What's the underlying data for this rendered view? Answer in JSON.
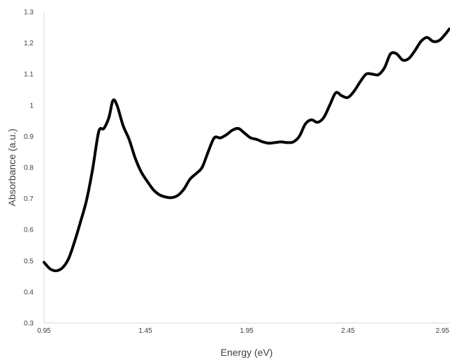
{
  "chart_data": {
    "type": "line",
    "title": "",
    "xlabel": "Energy (eV)",
    "ylabel": "Absorbance (a.u.)",
    "xlim": [
      0.95,
      2.95
    ],
    "ylim": [
      0.3,
      1.3
    ],
    "xticks": [
      0.95,
      1.45,
      1.95,
      2.45,
      2.95
    ],
    "xtick_labels": [
      "0.95",
      "1.45",
      "1.95",
      "2.45",
      "2.95"
    ],
    "yticks": [
      0.3,
      0.4,
      0.5,
      0.6,
      0.7,
      0.8,
      0.9,
      1.0,
      1.1,
      1.2,
      1.3
    ],
    "ytick_labels": [
      "0.3",
      "0.4",
      "0.5",
      "0.6",
      "0.7",
      "0.8",
      "0.9",
      "1",
      "1.1",
      "1.2",
      "1.3"
    ],
    "grid": false,
    "legend": "none",
    "series": [
      {
        "color": "#000000",
        "x": [
          0.95,
          0.98,
          1.01,
          1.04,
          1.07,
          1.1,
          1.13,
          1.16,
          1.19,
          1.22,
          1.245,
          1.27,
          1.29,
          1.31,
          1.34,
          1.37,
          1.4,
          1.43,
          1.46,
          1.49,
          1.52,
          1.55,
          1.58,
          1.61,
          1.64,
          1.67,
          1.7,
          1.73,
          1.76,
          1.79,
          1.82,
          1.85,
          1.88,
          1.91,
          1.94,
          1.97,
          2.0,
          2.03,
          2.06,
          2.09,
          2.12,
          2.15,
          2.18,
          2.21,
          2.24,
          2.27,
          2.3,
          2.33,
          2.36,
          2.39,
          2.42,
          2.45,
          2.48,
          2.51,
          2.54,
          2.57,
          2.6,
          2.63,
          2.66,
          2.69,
          2.72,
          2.75,
          2.78,
          2.81,
          2.84,
          2.87,
          2.9,
          2.93,
          2.95
        ],
        "y": [
          0.495,
          0.474,
          0.468,
          0.477,
          0.505,
          0.56,
          0.625,
          0.695,
          0.795,
          0.915,
          0.925,
          0.96,
          1.015,
          1.0,
          0.935,
          0.89,
          0.83,
          0.785,
          0.755,
          0.728,
          0.712,
          0.705,
          0.703,
          0.71,
          0.73,
          0.762,
          0.78,
          0.8,
          0.85,
          0.895,
          0.895,
          0.905,
          0.92,
          0.925,
          0.91,
          0.895,
          0.89,
          0.882,
          0.878,
          0.88,
          0.882,
          0.88,
          0.882,
          0.9,
          0.94,
          0.953,
          0.945,
          0.96,
          1.0,
          1.04,
          1.03,
          1.025,
          1.045,
          1.075,
          1.1,
          1.1,
          1.098,
          1.12,
          1.165,
          1.165,
          1.145,
          1.15,
          1.175,
          1.205,
          1.218,
          1.205,
          1.208,
          1.228,
          1.245
        ]
      }
    ]
  }
}
